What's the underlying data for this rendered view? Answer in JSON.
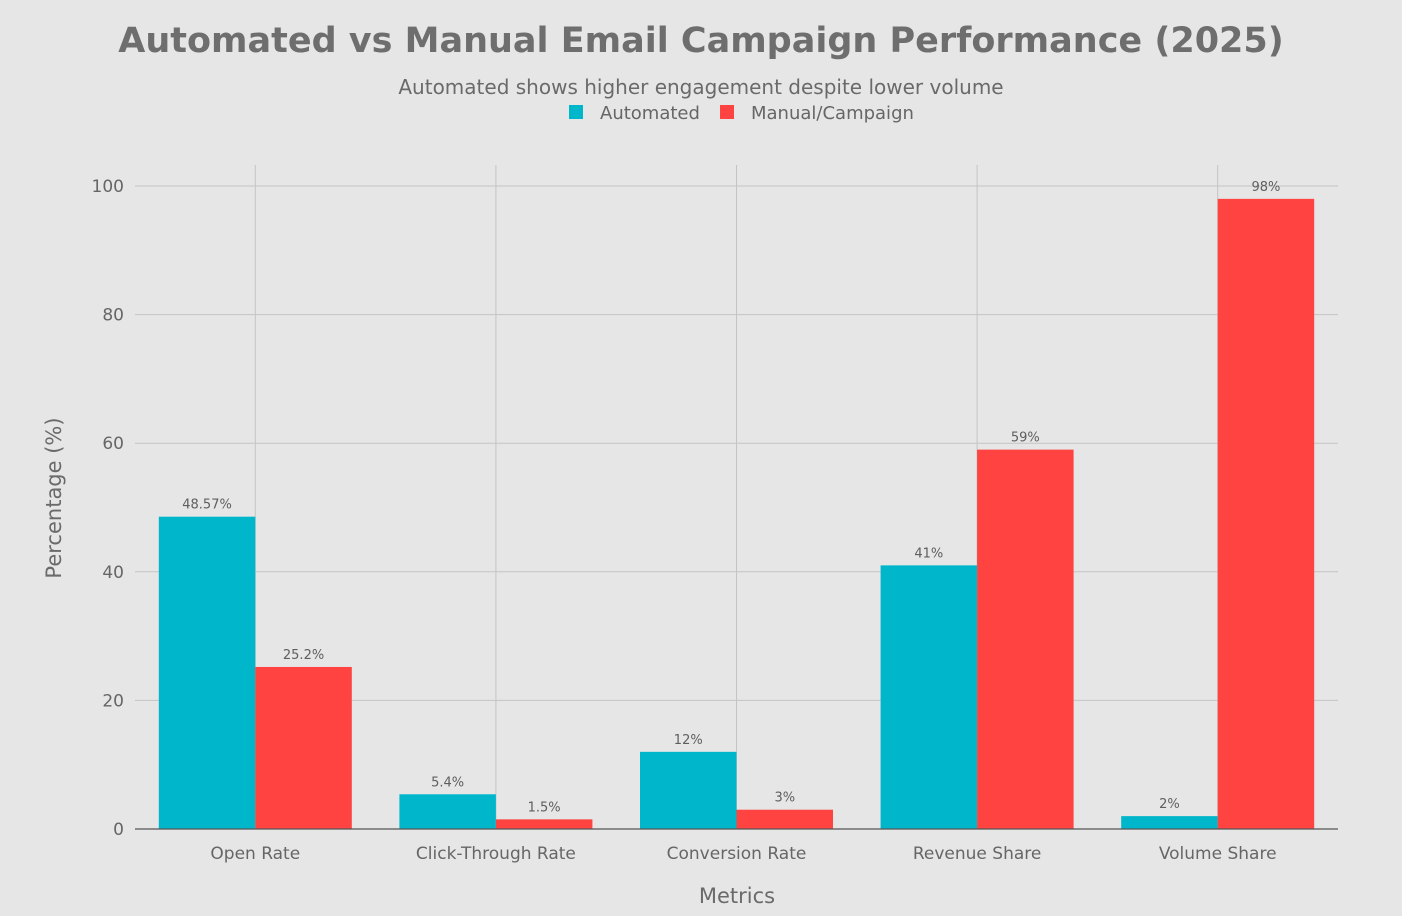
{
  "chart_data": {
    "type": "bar",
    "title": "Automated vs Manual Email Campaign Performance (2025)",
    "subtitle": "Automated shows higher engagement despite lower volume",
    "xlabel": "Metrics",
    "ylabel": "Percentage (%)",
    "categories": [
      "Open Rate",
      "Click-Through Rate",
      "Conversion Rate",
      "Revenue Share",
      "Volume Share"
    ],
    "series": [
      {
        "name": "Automated",
        "color": "#00b6cb",
        "values": [
          48.57,
          5.4,
          12,
          41,
          2
        ],
        "labels": [
          "48.57%",
          "5.4%",
          "12%",
          "41%",
          "2%"
        ]
      },
      {
        "name": "Manual/Campaign",
        "color": "#ff4340",
        "values": [
          25.2,
          1.5,
          3,
          59,
          98
        ],
        "labels": [
          "25.2%",
          "1.5%",
          "3%",
          "59%",
          "98%"
        ]
      }
    ],
    "ylim": [
      0,
      103
    ],
    "yticks": [
      0,
      20,
      40,
      60,
      80,
      100
    ],
    "grid": true,
    "legend_position": "top-center"
  }
}
